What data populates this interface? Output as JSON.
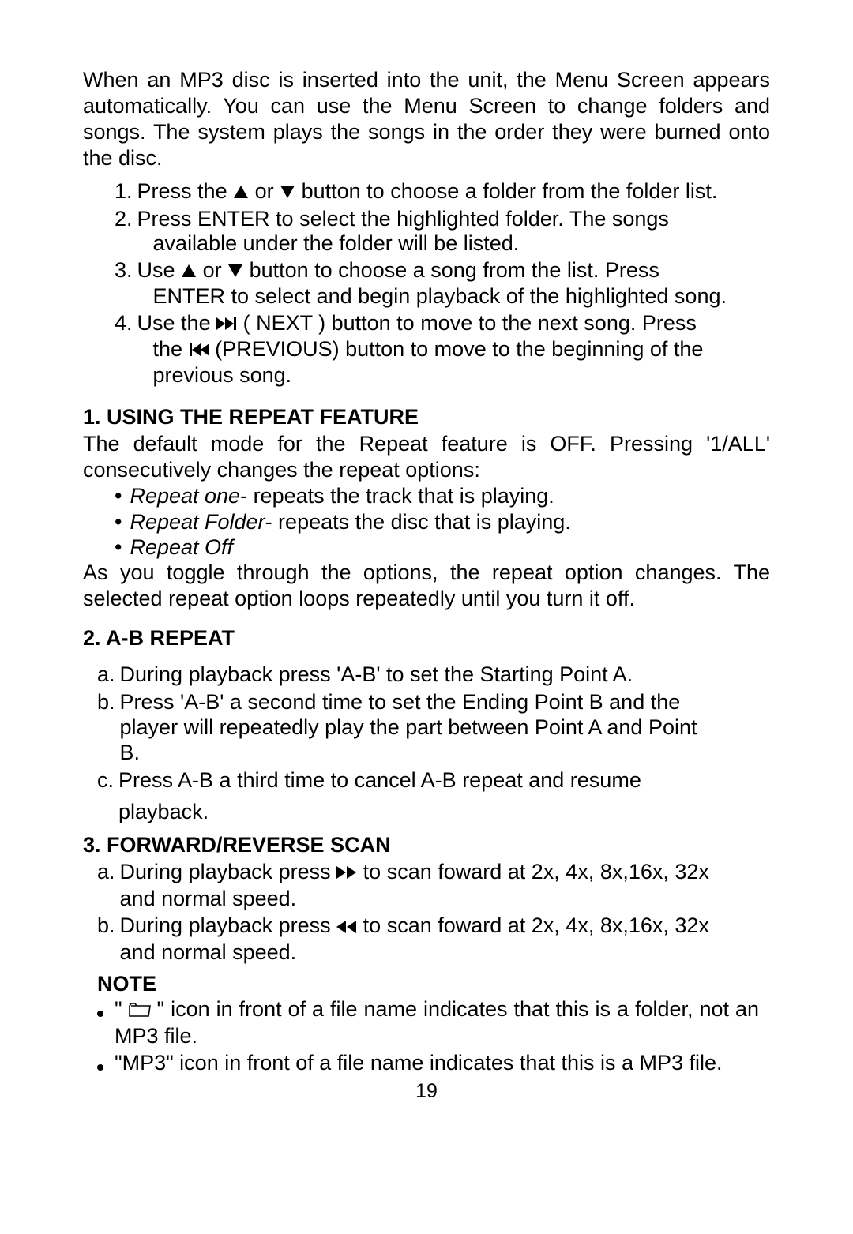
{
  "intro": "When an MP3 disc is inserted into the unit, the Menu Screen appears automatically. You can use the Menu Screen to change folders and songs. The system plays the songs in the order they were burned onto the disc.",
  "steps": {
    "1": {
      "before": "Press the ",
      "mid": " or ",
      "after": " button to choose a folder from the folder list."
    },
    "2": {
      "line1": "Press ENTER to select the highlighted folder. The songs",
      "line2": "available under the folder will be listed."
    },
    "3": {
      "before": "Use ",
      "mid": " or ",
      "after1": " button to choose a song from the list. Press",
      "line2": "ENTER to select and begin playback of the highlighted song."
    },
    "4": {
      "before": "Use the ",
      "mid1": " ( NEXT ) button to move to the next song. Press",
      "line2a": "the ",
      "line2b": " (PREVIOUS) button to move to the beginning of the",
      "line3": "previous song."
    }
  },
  "sec1": {
    "head": "1. USING THE REPEAT FEATURE",
    "body1": "The default mode for the Repeat feature is OFF. Pressing '1/ALL' consecutively  changes the repeat options:",
    "items": [
      {
        "ital": "Repeat one",
        "rest": "- repeats the track that is playing."
      },
      {
        "ital": "Repeat Folder",
        "rest": "- repeats the disc that is playing."
      },
      {
        "ital": "Repeat Off",
        "rest": ""
      }
    ],
    "body2": " As you toggle through the options, the repeat option changes. The selected repeat option loops repeatedly until you turn it off."
  },
  "sec2": {
    "head": "2. A-B REPEAT",
    "items": {
      "a": "During playback press 'A-B' to set the Starting Point  A.",
      "b": {
        "l1": "Press 'A-B' a second time to set the Ending Point B and the",
        "l2": "player will repeatedly play the part between Point A and Point",
        "l3": "B."
      },
      "c": {
        "l1": "Press A-B a third time to cancel A-B repeat and resume",
        "l2": "playback."
      }
    }
  },
  "sec3": {
    "head": "3. FORWARD/REVERSE SCAN",
    "a": {
      "before": "During playback press ",
      "after": "  to scan foward at 2x, 4x, 8x,16x, 32x",
      "l2": "and normal speed."
    },
    "b": {
      "before": "During playback press ",
      "after": "  to scan foward at 2x, 4x, 8x,16x, 32x",
      "l2": "and normal speed."
    }
  },
  "note": {
    "head": "NOTE",
    "n1a": "\" ",
    "n1b": " \" icon in front of a file name indicates that this is a folder, not an MP3 file.",
    "n2": "\"MP3\" icon in front of a file name indicates that this is a MP3 file."
  },
  "pageNumber": "19",
  "icons": {
    "triangle_up": "<svg width='20' height='18' viewBox='0 0 20 18'><polygon points='10,1 19,17 1,17' fill='#000'/></svg>",
    "triangle_down": "<svg width='20' height='18' viewBox='0 0 20 18'><polygon points='1,1 19,1 10,17' fill='#000'/></svg>",
    "next": "<svg width='26' height='18' viewBox='0 0 26 18'><polygon points='0,1 11,9 0,17' fill='#000'/><polygon points='11,1 22,9 11,17' fill='#000'/><rect x='22' y='1' width='3' height='16' fill='#000'/></svg>",
    "prev": "<svg width='26' height='18' viewBox='0 0 26 18'><rect x='1' y='1' width='3' height='16' fill='#000'/><polygon points='15,1 4,9 15,17' fill='#000'/><polygon points='26,1 15,9 26,17' fill='#000'/></svg>",
    "ffwd": "<svg width='26' height='18' viewBox='0 0 26 18'><polygon points='0,1 12,9 0,17' fill='#000'/><polygon points='13,1 25,9 13,17' fill='#000'/></svg>",
    "frev": "<svg width='26' height='18' viewBox='0 0 26 18'><polygon points='12,1 0,9 12,17' fill='#000'/><polygon points='25,1 13,9 25,17' fill='#000'/></svg>",
    "folder": "<svg width='28' height='20' viewBox='0 0 28 20'><path d='M1 6 L1 19 L25 19 L27 6 L10 6 L8 3 L3 3 L1 6 Z M3 6 L25 6' fill='none' stroke='#000' stroke-width='1.6'/></svg>"
  }
}
